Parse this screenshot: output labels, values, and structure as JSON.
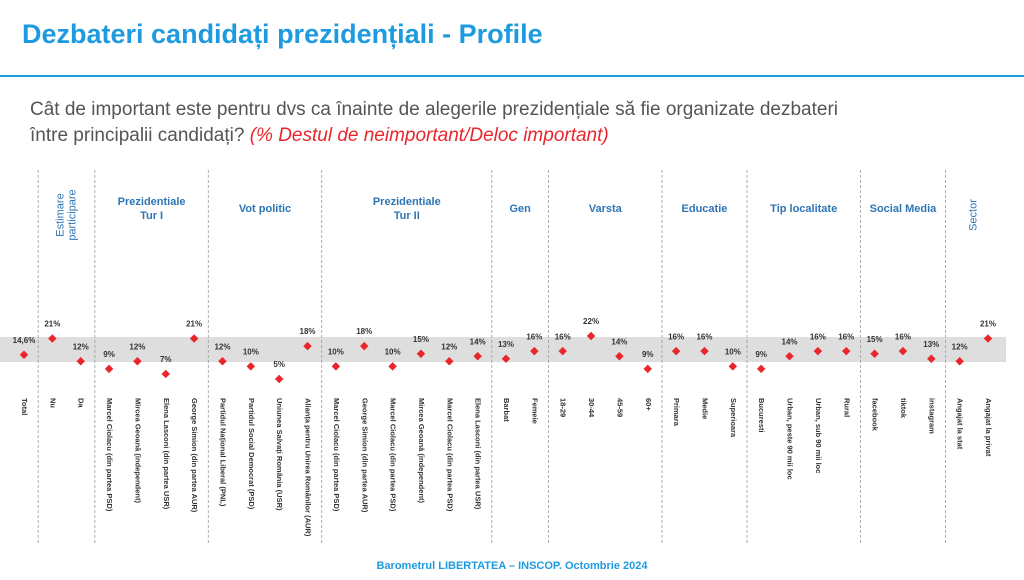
{
  "chart_data": {
    "type": "dot",
    "title": "Dezbateri candidați prezidențiali - Profile",
    "question": [
      "Cât de important este pentru dvs ca înainte de alegerile prezidențiale să fie organizate dezbateri",
      "între principalii candidați?"
    ],
    "question_note": "(% Destul de neimportant/Deloc important)",
    "footer": "Barometrul LIBERTATEA – INSCOP. Octombrie 2024",
    "color": "#e8262c",
    "groups": [
      {
        "categories": [
          "Total"
        ],
        "values": [
          14.6
        ],
        "value_labels": [
          "14,6%"
        ]
      },
      {
        "label_lines": [
          "Estimare",
          "participare"
        ],
        "vertical": true,
        "categories": [
          "Nu",
          "Da"
        ],
        "values": [
          21,
          12
        ],
        "value_labels": [
          "21%",
          "12%"
        ]
      },
      {
        "label_lines": [
          "Prezidentiale",
          "Tur I"
        ],
        "categories": [
          "Marcel Ciolacu (din partea PSD)",
          "Mircea Geoană (independent)",
          "Elena Lasconi (din partea USR)",
          "George Simion (din partea AUR)"
        ],
        "values": [
          9,
          12,
          7,
          21
        ],
        "value_labels": [
          "9%",
          "12%",
          "7%",
          "21%"
        ]
      },
      {
        "label_lines": [
          "Vot politic"
        ],
        "categories": [
          "Partidul Național Liberal (PNL)",
          "Partidul Social Democrat (PSD)",
          "Uniunea Salvați România (USR)",
          "Alianța pentru Unirea Românilor (AUR)"
        ],
        "values": [
          12,
          10,
          5,
          18
        ],
        "value_labels": [
          "12%",
          "10%",
          "5%",
          "18%"
        ]
      },
      {
        "label_lines": [
          "Prezidentiale",
          "Tur II"
        ],
        "categories": [
          "Marcel Ciolacu (din partea PSD)",
          "George Simion (din partea AUR)",
          "Marcel Ciolacu (din partea PSD)",
          "Mircea Geoană (independent)",
          "Marcel Ciolacu (din partea PSD)",
          "Elena Lasconi (din partea USR)"
        ],
        "values": [
          10,
          18,
          10,
          15,
          12,
          14
        ],
        "value_labels": [
          "10%",
          "18%",
          "10%",
          "15%",
          "12%",
          "14%"
        ]
      },
      {
        "label_lines": [
          "Gen"
        ],
        "categories": [
          "Barbat",
          "Femeie"
        ],
        "values": [
          13,
          16
        ],
        "value_labels": [
          "13%",
          "16%"
        ]
      },
      {
        "label_lines": [
          "Varsta"
        ],
        "categories": [
          "18-29",
          "30-44",
          "45-59",
          "60+"
        ],
        "values": [
          16,
          22,
          14,
          9
        ],
        "value_labels": [
          "16%",
          "22%",
          "14%",
          "9%"
        ]
      },
      {
        "label_lines": [
          "Educatie"
        ],
        "categories": [
          "Primara",
          "Medie",
          "Superioara"
        ],
        "values": [
          16,
          16,
          10
        ],
        "value_labels": [
          "16%",
          "16%",
          "10%"
        ]
      },
      {
        "label_lines": [
          "Tip localitate"
        ],
        "categories": [
          "Bucuresti",
          "Urban, peste 90 mii loc",
          "Urban, sub 90 mii loc",
          "Rural"
        ],
        "values": [
          9,
          14,
          16,
          16
        ],
        "value_labels": [
          "9%",
          "14%",
          "16%",
          "16%"
        ]
      },
      {
        "label_lines": [
          "Social Media"
        ],
        "categories": [
          "facebook",
          "tiktok",
          "instagram"
        ],
        "values": [
          15,
          16,
          13
        ],
        "value_labels": [
          "15%",
          "16%",
          "13%"
        ]
      },
      {
        "label_lines": [
          "Sector"
        ],
        "vertical": true,
        "categories": [
          "Angajat la stat",
          "Angajat la privat"
        ],
        "values": [
          12,
          21
        ],
        "value_labels": [
          "12%",
          "21%"
        ]
      }
    ]
  }
}
